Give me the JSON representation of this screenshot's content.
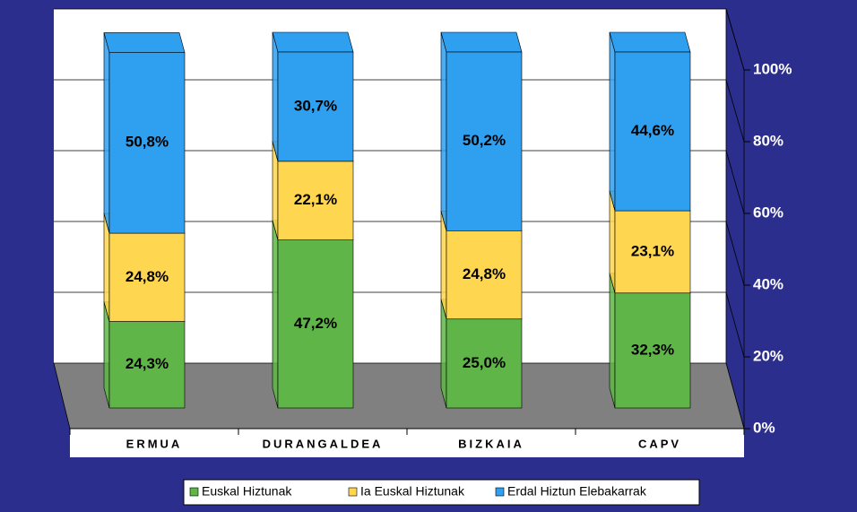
{
  "chart_data": {
    "type": "bar3d_stacked",
    "categories": [
      "ERMUA",
      "DURANGALDEA",
      "BIZKAIA",
      "CAPV"
    ],
    "series": [
      {
        "name": "Euskal Hiztunak",
        "color": "#5fb548",
        "values": [
          24.3,
          47.2,
          25.0,
          32.3
        ],
        "value_labels": [
          "24,3%",
          "47,2%",
          "25,0%",
          "32,3%"
        ]
      },
      {
        "name": "Ia Euskal Hiztunak",
        "color": "#ffd64f",
        "values": [
          24.8,
          22.1,
          24.8,
          23.1
        ],
        "value_labels": [
          "24,8%",
          "22,1%",
          "24,8%",
          "23,1%"
        ]
      },
      {
        "name": "Erdal Hiztun Elebakarrak",
        "color": "#2f9ff0",
        "values": [
          50.8,
          30.7,
          50.2,
          44.6
        ],
        "value_labels": [
          "50,8%",
          "30,7%",
          "50,2%",
          "44,6%"
        ]
      }
    ],
    "ylim": [
      0,
      100
    ],
    "yticks": [
      {
        "value": 0,
        "label": "0%"
      },
      {
        "value": 20,
        "label": "20%"
      },
      {
        "value": 40,
        "label": "40%"
      },
      {
        "value": 60,
        "label": "60%"
      },
      {
        "value": 80,
        "label": "80%"
      },
      {
        "value": 100,
        "label": "100%"
      }
    ],
    "grid": true
  }
}
